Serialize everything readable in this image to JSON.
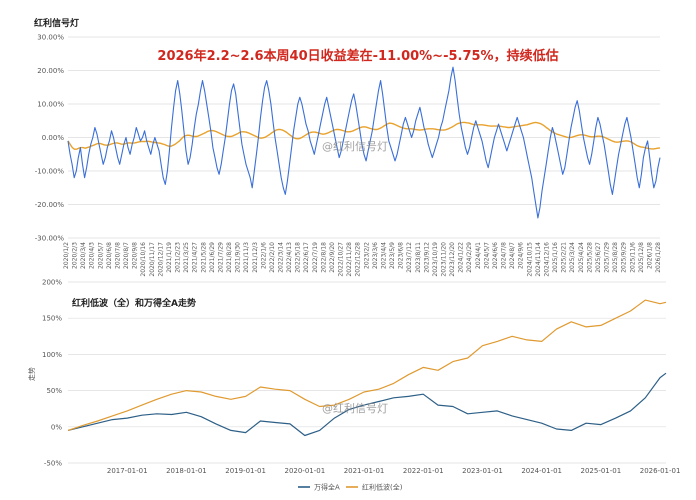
{
  "chart_data": [
    {
      "type": "line",
      "title": "红利信号灯",
      "annotation": "2026年2.2~2.6本周40日收益差在-11.00%~-5.75%，持续低估",
      "watermark": "@红利信号灯",
      "ylim": [
        -30,
        30
      ],
      "y_ticks": [
        30,
        20,
        10,
        0,
        -10,
        -20,
        -30
      ],
      "y_tick_labels": [
        "30.00%",
        "20.00%",
        "10.00%",
        "0.00%",
        "-10.00%",
        "-20.00%",
        "-30.00%"
      ],
      "x_tick_labels": [
        "2020/1/2",
        "2020/2/3",
        "2020/3/4",
        "2020/4/3",
        "2020/5/7",
        "2020/6/8",
        "2020/7/8",
        "2020/8/7",
        "2020/9/8",
        "2020/10/16",
        "2020/11/17",
        "2020/12/17",
        "2021/1/19",
        "2021/2/23",
        "2021/3/25",
        "2021/4/27",
        "2021/5/28",
        "2021/6/29",
        "2021/7/29",
        "2021/8/28",
        "2021/9/30",
        "2021/11/3",
        "2021/12/3",
        "2022/1/6",
        "2022/2/10",
        "2022/3/14",
        "2022/4/13",
        "2022/5/18",
        "2022/6/17",
        "2022/7/19",
        "2022/8/18",
        "2022/9/20",
        "2022/10/27",
        "2022/11/28",
        "2022/12/28",
        "2023/2/2",
        "2023/3/6",
        "2023/4/4",
        "2023/5/9",
        "2023/6/8",
        "2023/7/12",
        "2023/8/11",
        "2023/9/12",
        "2023/10/19",
        "2023/11/20",
        "2023/12/20",
        "2024/1/22",
        "2024/2/29",
        "2024/4/1",
        "2024/5/7",
        "2024/6/6",
        "2024/7/8",
        "2024/8/7",
        "2024/9/6",
        "2024/10/15",
        "2024/11/14",
        "2024/12/16",
        "2025/1/16",
        "2025/2/21",
        "2025/3/24",
        "2025/4/24",
        "2025/5/28",
        "2025/6/27",
        "2025/7/29",
        "2025/8/28",
        "2025/9/29",
        "2025/11/6",
        "2025/12/8",
        "2026/1/8",
        "2026/1/28"
      ],
      "series": [
        {
          "name": "",
          "color": "#3a6fd8",
          "values": [
            -1,
            -5,
            -8,
            -12,
            -10,
            -6,
            -3,
            -8,
            -12,
            -9,
            -5,
            -2,
            0,
            3,
            1,
            -2,
            -5,
            -8,
            -6,
            -3,
            -1,
            2,
            0,
            -3,
            -6,
            -8,
            -5,
            -2,
            0,
            -3,
            -5,
            -2,
            0,
            3,
            1,
            -1,
            0,
            2,
            -1,
            -3,
            -5,
            -2,
            0,
            -2,
            -4,
            -8,
            -12,
            -14,
            -10,
            -4,
            3,
            9,
            14,
            17,
            13,
            8,
            2,
            -4,
            -8,
            -6,
            -2,
            3,
            7,
            10,
            14,
            17,
            14,
            10,
            6,
            2,
            -3,
            -6,
            -9,
            -11,
            -8,
            -4,
            0,
            5,
            10,
            14,
            16,
            13,
            8,
            3,
            -2,
            -5,
            -8,
            -10,
            -12,
            -15,
            -10,
            -5,
            0,
            6,
            11,
            15,
            17,
            14,
            10,
            5,
            0,
            -4,
            -8,
            -12,
            -15,
            -17,
            -13,
            -8,
            -3,
            2,
            6,
            10,
            12,
            10,
            7,
            4,
            2,
            -1,
            -3,
            -5,
            -2,
            1,
            4,
            7,
            10,
            12,
            9,
            6,
            3,
            0,
            -3,
            -6,
            -4,
            -1,
            2,
            5,
            8,
            11,
            13,
            10,
            6,
            2,
            -2,
            -5,
            -7,
            -4,
            -1,
            2,
            6,
            10,
            14,
            17,
            13,
            8,
            3,
            -1,
            -3,
            -5,
            -7,
            -5,
            -2,
            1,
            4,
            6,
            4,
            2,
            0,
            2,
            5,
            7,
            9,
            6,
            3,
            1,
            -2,
            -4,
            -6,
            -4,
            -2,
            0,
            3,
            5,
            8,
            11,
            14,
            18,
            21,
            17,
            12,
            7,
            3,
            0,
            -3,
            -5,
            -3,
            0,
            3,
            5,
            3,
            1,
            -1,
            -4,
            -7,
            -9,
            -6,
            -3,
            0,
            2,
            4,
            2,
            0,
            -2,
            -4,
            -2,
            0,
            2,
            4,
            6,
            4,
            2,
            0,
            -3,
            -6,
            -9,
            -12,
            -16,
            -20,
            -24,
            -21,
            -16,
            -12,
            -8,
            -4,
            0,
            3,
            1,
            -2,
            -5,
            -8,
            -11,
            -9,
            -5,
            -1,
            3,
            6,
            9,
            11,
            8,
            4,
            0,
            -3,
            -6,
            -8,
            -5,
            -1,
            3,
            6,
            4,
            1,
            -2,
            -6,
            -10,
            -14,
            -17,
            -13,
            -9,
            -5,
            -2,
            1,
            4,
            6,
            3,
            0,
            -4,
            -8,
            -12,
            -15,
            -11,
            -6,
            -3,
            -1,
            -6,
            -11,
            -15,
            -13,
            -9,
            -6
          ]
        },
        {
          "name": "",
          "color": "#e8a22c",
          "values": [
            -1,
            -2,
            -3,
            -3.5,
            -3.5,
            -3.2,
            -3,
            -3,
            -3.2,
            -3,
            -2.8,
            -2.5,
            -2.3,
            -2,
            -1.8,
            -1.8,
            -2,
            -2.2,
            -2.3,
            -2.2,
            -2,
            -1.8,
            -1.6,
            -1.6,
            -1.8,
            -2,
            -2,
            -1.8,
            -1.6,
            -1.6,
            -1.7,
            -1.6,
            -1.5,
            -1.3,
            -1.2,
            -1.2,
            -1.2,
            -1.1,
            -1.2,
            -1.3,
            -1.5,
            -1.5,
            -1.6,
            -1.7,
            -1.9,
            -2.1,
            -2.4,
            -2.6,
            -2.6,
            -2.3,
            -2,
            -1.5,
            -1,
            -0.3,
            0.3,
            0.6,
            0.7,
            0.6,
            0.4,
            0.3,
            0.3,
            0.5,
            0.8,
            1.1,
            1.4,
            1.8,
            2,
            2.1,
            2,
            1.8,
            1.5,
            1.2,
            0.9,
            0.6,
            0.4,
            0.3,
            0.3,
            0.5,
            0.8,
            1.1,
            1.5,
            1.7,
            1.7,
            1.6,
            1.4,
            1.1,
            0.8,
            0.5,
            0.2,
            -0.1,
            -0.2,
            -0.1,
            0.1,
            0.5,
            0.9,
            1.4,
            1.8,
            2.2,
            2.4,
            2.4,
            2.2,
            1.9,
            1.5,
            1,
            0.5,
            0,
            -0.3,
            -0.4,
            -0.3,
            0,
            0.4,
            0.8,
            1.2,
            1.5,
            1.6,
            1.6,
            1.5,
            1.3,
            1.1,
            1,
            1.1,
            1.3,
            1.6,
            1.9,
            2.2,
            2.4,
            2.4,
            2.3,
            2.1,
            1.9,
            1.7,
            1.7,
            1.8,
            2,
            2.3,
            2.6,
            2.9,
            3.1,
            3.2,
            3.1,
            2.9,
            2.7,
            2.5,
            2.4,
            2.4,
            2.6,
            2.9,
            3.3,
            3.7,
            4.1,
            4.3,
            4.2,
            4,
            3.7,
            3.4,
            3.1,
            2.9,
            2.7,
            2.6,
            2.6,
            2.6,
            2.5,
            2.4,
            2.3,
            2.2,
            2.3,
            2.4,
            2.5,
            2.6,
            2.6,
            2.6,
            2.5,
            2.4,
            2.3,
            2.2,
            2.2,
            2.3,
            2.5,
            2.8,
            3.1,
            3.5,
            3.9,
            4.2,
            4.4,
            4.5,
            4.5,
            4.4,
            4.3,
            4.1,
            3.9,
            3.8,
            3.8,
            3.8,
            3.8,
            3.7,
            3.6,
            3.5,
            3.4,
            3.4,
            3.4,
            3.4,
            3.4,
            3.3,
            3.2,
            3.1,
            3,
            3,
            3.1,
            3.2,
            3.3,
            3.4,
            3.5,
            3.6,
            3.7,
            3.8,
            4,
            4.2,
            4.4,
            4.5,
            4.4,
            4.2,
            3.9,
            3.5,
            3,
            2.5,
            2,
            1.6,
            1.3,
            1,
            0.8,
            0.6,
            0.4,
            0.2,
            0,
            0,
            0.1,
            0.3,
            0.5,
            0.7,
            0.8,
            0.8,
            0.7,
            0.5,
            0.3,
            0.2,
            0.2,
            0.3,
            0.4,
            0.4,
            0.3,
            0.1,
            -0.2,
            -0.5,
            -0.8,
            -1.1,
            -1.3,
            -1.4,
            -1.3,
            -1.2,
            -1.1,
            -1,
            -1,
            -1.2,
            -1.5,
            -1.9,
            -2.3,
            -2.6,
            -2.8,
            -2.9,
            -3,
            -3.2,
            -3.3,
            -3.4,
            -3.4,
            -3.3,
            -3.2,
            -3.1
          ]
        }
      ]
    },
    {
      "type": "line",
      "title": "红利低波（全）和万得全A走势",
      "ylabel": "走势",
      "watermark": "@红利信号灯",
      "ylim": [
        -50,
        200
      ],
      "y_ticks": [
        200,
        150,
        100,
        50,
        0,
        -50
      ],
      "y_tick_labels": [
        "200%",
        "150%",
        "100%",
        "50%",
        "0%",
        "-50%"
      ],
      "x_ticks": [
        2017,
        2018,
        2019,
        2020,
        2021,
        2022,
        2023,
        2024,
        2025,
        2026
      ],
      "x_tick_labels": [
        "2017-01-01",
        "2018-01-01",
        "2019-01-01",
        "2020-01-01",
        "2021-01-01",
        "2022-01-01",
        "2023-01-01",
        "2024-01-01",
        "2025-01-01",
        "2026-01-01"
      ],
      "xlim": [
        2016.0,
        2026.1
      ],
      "x": [
        2016,
        2016.25,
        2016.5,
        2016.75,
        2017,
        2017.25,
        2017.5,
        2017.75,
        2018,
        2018.25,
        2018.5,
        2018.75,
        2019,
        2019.25,
        2019.5,
        2019.75,
        2020,
        2020.25,
        2020.5,
        2020.75,
        2021,
        2021.25,
        2021.5,
        2021.75,
        2022,
        2022.25,
        2022.5,
        2022.75,
        2023,
        2023.25,
        2023.5,
        2023.75,
        2024,
        2024.25,
        2024.5,
        2024.75,
        2025,
        2025.25,
        2025.5,
        2025.75,
        2026,
        2026.1
      ],
      "legend": "bottom",
      "series": [
        {
          "name": "万得全A",
          "color": "#2d5f87",
          "values": [
            -5,
            0,
            5,
            10,
            12,
            16,
            18,
            17,
            20,
            14,
            4,
            -5,
            -8,
            8,
            6,
            4,
            -12,
            -5,
            12,
            24,
            30,
            35,
            40,
            42,
            45,
            30,
            28,
            18,
            20,
            22,
            15,
            10,
            5,
            -3,
            -5,
            5,
            3,
            12,
            22,
            40,
            68,
            74
          ]
        },
        {
          "name": "红利低波(全)",
          "color": "#e09a30",
          "values": [
            -5,
            2,
            8,
            15,
            22,
            30,
            38,
            45,
            50,
            48,
            42,
            38,
            42,
            55,
            52,
            50,
            38,
            28,
            30,
            38,
            48,
            52,
            60,
            72,
            82,
            78,
            90,
            95,
            112,
            118,
            125,
            120,
            118,
            135,
            145,
            138,
            140,
            150,
            160,
            175,
            170,
            172
          ]
        }
      ]
    }
  ]
}
